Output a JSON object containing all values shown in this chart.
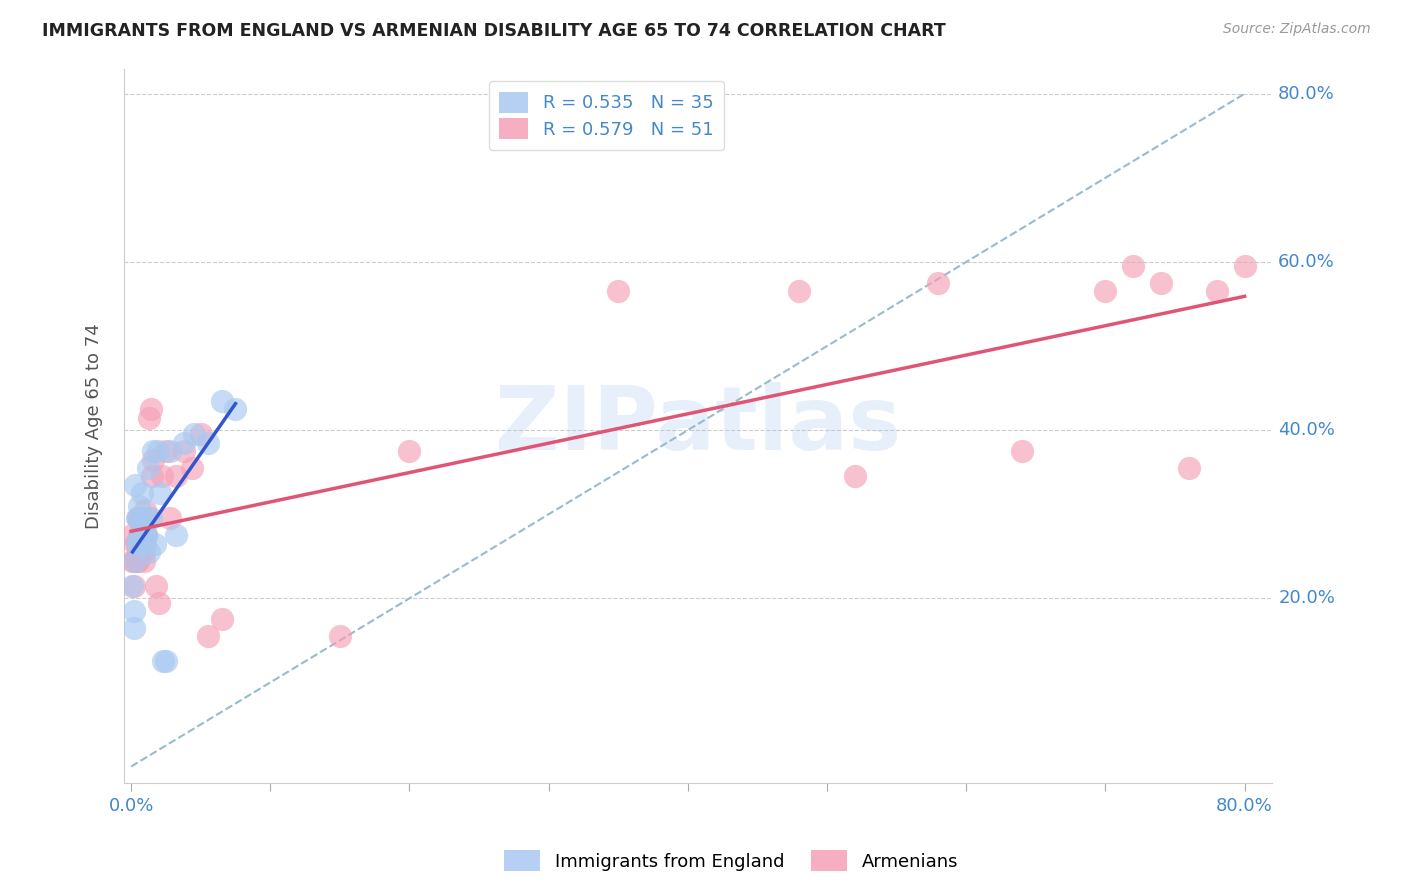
{
  "title": "IMMIGRANTS FROM ENGLAND VS ARMENIAN DISABILITY AGE 65 TO 74 CORRELATION CHART",
  "source": "Source: ZipAtlas.com",
  "ylabel_left": "Disability Age 65 to 74",
  "xlim": [
    0.0,
    0.8
  ],
  "ylim": [
    0.0,
    0.8
  ],
  "blue_R": 0.535,
  "blue_N": 35,
  "pink_R": 0.579,
  "pink_N": 51,
  "blue_color": "#A8C8F0",
  "pink_color": "#F5A0B8",
  "blue_line_color": "#3355CC",
  "pink_line_color": "#E05575",
  "diag_color": "#99BBCC",
  "watermark": "ZIPatlas",
  "watermark_color": "#AACCEE",
  "axis_label_color": "#4488CC",
  "legend_label_blue": "Immigrants from England",
  "legend_label_pink": "Armenians",
  "ytick_vals": [
    0.2,
    0.4,
    0.6,
    0.8
  ],
  "ytick_labels": [
    "20.0%",
    "40.0%",
    "60.0%",
    "80.0%"
  ],
  "xtick_vals": [
    0.0,
    0.1,
    0.2,
    0.3,
    0.4,
    0.5,
    0.6,
    0.7,
    0.8
  ],
  "xtick_labels": [
    "0.0%",
    "",
    "",
    "",
    "",
    "",
    "",
    "",
    "80.0%"
  ],
  "blue_points_x": [
    0.001,
    0.002,
    0.002,
    0.003,
    0.003,
    0.004,
    0.004,
    0.005,
    0.005,
    0.006,
    0.006,
    0.007,
    0.007,
    0.008,
    0.008,
    0.009,
    0.01,
    0.01,
    0.011,
    0.012,
    0.013,
    0.014,
    0.016,
    0.017,
    0.019,
    0.021,
    0.023,
    0.025,
    0.028,
    0.032,
    0.038,
    0.045,
    0.055,
    0.065,
    0.075
  ],
  "blue_points_y": [
    0.215,
    0.185,
    0.165,
    0.245,
    0.335,
    0.265,
    0.295,
    0.27,
    0.295,
    0.27,
    0.31,
    0.265,
    0.295,
    0.265,
    0.325,
    0.285,
    0.275,
    0.295,
    0.275,
    0.355,
    0.255,
    0.295,
    0.375,
    0.265,
    0.375,
    0.325,
    0.125,
    0.125,
    0.375,
    0.275,
    0.385,
    0.395,
    0.385,
    0.435,
    0.425
  ],
  "pink_points_x": [
    0.001,
    0.001,
    0.002,
    0.002,
    0.003,
    0.003,
    0.004,
    0.004,
    0.005,
    0.005,
    0.006,
    0.006,
    0.007,
    0.007,
    0.007,
    0.008,
    0.008,
    0.009,
    0.009,
    0.01,
    0.01,
    0.011,
    0.012,
    0.013,
    0.014,
    0.015,
    0.016,
    0.018,
    0.02,
    0.022,
    0.025,
    0.028,
    0.032,
    0.038,
    0.044,
    0.05,
    0.055,
    0.065,
    0.15,
    0.2,
    0.35,
    0.48,
    0.52,
    0.58,
    0.64,
    0.7,
    0.72,
    0.74,
    0.76,
    0.78,
    0.8
  ],
  "pink_points_y": [
    0.245,
    0.275,
    0.245,
    0.215,
    0.245,
    0.265,
    0.245,
    0.265,
    0.295,
    0.245,
    0.275,
    0.295,
    0.255,
    0.275,
    0.255,
    0.265,
    0.285,
    0.255,
    0.245,
    0.265,
    0.305,
    0.275,
    0.295,
    0.415,
    0.425,
    0.345,
    0.365,
    0.215,
    0.195,
    0.345,
    0.375,
    0.295,
    0.345,
    0.375,
    0.355,
    0.395,
    0.155,
    0.175,
    0.155,
    0.375,
    0.565,
    0.565,
    0.345,
    0.575,
    0.375,
    0.565,
    0.595,
    0.575,
    0.355,
    0.565,
    0.595
  ]
}
